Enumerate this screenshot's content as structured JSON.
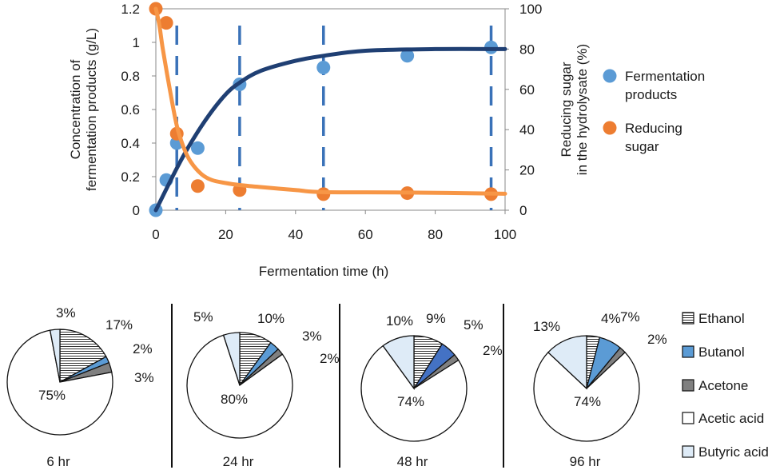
{
  "chart_data": [
    {
      "type": "scatter",
      "xlabel": "Fermentation time (h)",
      "ylabel_left": [
        "Concentration of",
        "fermentation products (g/L)"
      ],
      "ylabel_right": [
        "Reducing sugar",
        "in the hydrolysate (%)"
      ],
      "xlim": [
        0,
        100
      ],
      "ylim_left": [
        0,
        1.2
      ],
      "ylim_right": [
        0,
        100
      ],
      "x_ticks": [
        "0",
        "20",
        "40",
        "60",
        "80",
        "100"
      ],
      "y_ticks_left": [
        "0",
        "0.2",
        "0.4",
        "0.6",
        "0.8",
        "1",
        "1.2"
      ],
      "y_ticks_right": [
        "0",
        "20",
        "40",
        "60",
        "80",
        "100"
      ],
      "legend_position": "right",
      "sampling_times": [
        6,
        24,
        48,
        96
      ],
      "series": [
        {
          "name": "Fermentation products",
          "axis": "left",
          "color": "#5b9bd5",
          "fit_color": "#1f3f73",
          "x": [
            0,
            3,
            6,
            12,
            24,
            48,
            72,
            96
          ],
          "y": [
            0,
            0.18,
            0.4,
            0.37,
            0.75,
            0.85,
            0.92,
            0.97
          ],
          "fit": {
            "x": [
              0,
              6,
              10,
              15,
              20,
              24,
              30,
              40,
              48,
              60,
              80,
              100
            ],
            "y": [
              0,
              0.25,
              0.4,
              0.56,
              0.69,
              0.76,
              0.83,
              0.89,
              0.92,
              0.95,
              0.96,
              0.96
            ]
          }
        },
        {
          "name": "Reducing sugar",
          "axis": "right",
          "color": "#ed7d31",
          "fit_color": "#f79646",
          "x": [
            0,
            3,
            6,
            12,
            24,
            48,
            72,
            96
          ],
          "y": [
            100,
            93,
            38,
            12,
            10,
            8,
            8.5,
            8
          ],
          "fit": {
            "x": [
              0,
              1,
              2,
              4,
              6,
              8,
              10,
              13,
              16,
              20,
              24,
              30,
              40,
              48,
              72,
              100
            ],
            "y": [
              100,
              92,
              80,
              60,
              42,
              31,
              24,
              18,
              15,
              13.5,
              12.5,
              11.5,
              10,
              9,
              8.8,
              8.2
            ]
          }
        }
      ]
    },
    {
      "type": "pie",
      "categories": [
        "Ethanol",
        "Butanol",
        "Acetone",
        "Acetic acid",
        "Butyric acid"
      ],
      "colors": [
        "hatch",
        "#5b9bd5",
        "#808080",
        "#ffffff",
        "#deebf7"
      ],
      "pies": [
        {
          "label": "6 hr",
          "values": [
            17,
            2,
            3,
            75,
            3
          ]
        },
        {
          "label": "24 hr",
          "values": [
            10,
            3,
            2,
            80,
            5
          ]
        },
        {
          "label": "48 hr",
          "values": [
            9,
            5,
            2,
            74,
            10
          ],
          "butanol_color": "#4472c4"
        },
        {
          "label": "96 hr",
          "values": [
            4,
            7,
            2,
            74,
            13
          ]
        }
      ],
      "legend_position": "right"
    }
  ]
}
